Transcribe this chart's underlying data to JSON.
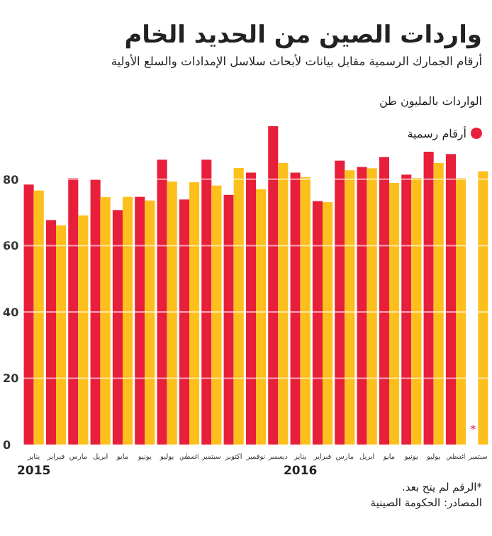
{
  "chart_data": {
    "type": "bar",
    "title": "واردات الصين من الحديد الخام",
    "subtitle": "أرقام الجمارك الرسمية مقابل بيانات لأبحاث سلاسل الإمدادات والسلع الأولية",
    "ylabel": "الواردات بالمليون طن",
    "categories": [
      "يناير",
      "فبراير",
      "مارس",
      "ابريل",
      "مايو",
      "يونيو",
      "يوليو",
      "اغسطس",
      "سبتمبر",
      "اكتوبر",
      "نوفمبر",
      "ديسمبر",
      "يناير",
      "فبراير",
      "مارس",
      "ابريل",
      "مايو",
      "يونيو",
      "يوليو",
      "اغسطس",
      "سبتمبر"
    ],
    "series": [
      {
        "name": "أرقام رسمية",
        "color": "#e81f3a",
        "values": [
          78.4,
          67.7,
          80.3,
          79.9,
          70.7,
          74.7,
          85.9,
          73.9,
          85.9,
          75.3,
          82,
          96,
          82,
          73.4,
          85.6,
          83.7,
          86.7,
          81.4,
          88.3,
          87.6,
          null
        ]
      },
      {
        "color": "#fdbf1c",
        "values": [
          76.6,
          66.1,
          69.1,
          74.6,
          74.7,
          73.6,
          79.3,
          79.1,
          78.1,
          83.4,
          77,
          84.9,
          80.6,
          73.1,
          82.7,
          83.3,
          78.9,
          80.4,
          84.9,
          80.3,
          82.4
        ]
      }
    ],
    "ylim": [
      0,
      96
    ],
    "yticks": [
      0,
      20,
      40,
      60,
      80
    ],
    "grid": "y",
    "legend": "top right",
    "annotations": [
      "2015",
      "2016",
      "*",
      "*الرقم لم يتح بعد.",
      "المصادر: الحكومة الصينية"
    ]
  }
}
